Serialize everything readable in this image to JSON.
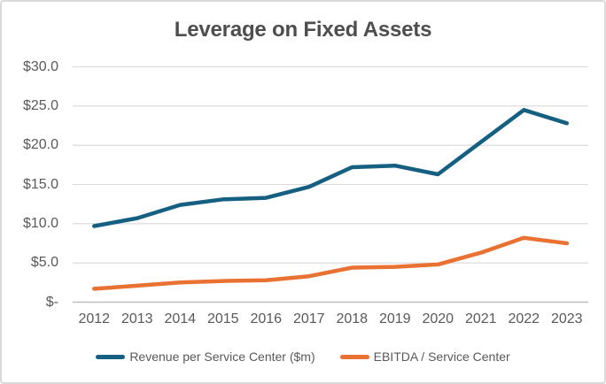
{
  "title": "Leverage on Fixed Assets",
  "colors": {
    "grid": "#d9d9d9",
    "axis_line": "#bfbfbf",
    "text": "#595959",
    "title_text": "#4e4e4e",
    "frame_border": "#d9d9d9",
    "series_revenue": "#156082",
    "series_ebitda": "#e97132"
  },
  "chart_data": {
    "type": "line",
    "title": "Leverage on Fixed Assets",
    "categories": [
      "2012",
      "2013",
      "2014",
      "2015",
      "2016",
      "2017",
      "2018",
      "2019",
      "2020",
      "2021",
      "2022",
      "2023"
    ],
    "series": [
      {
        "name": "Revenue per Service Center ($m)",
        "color": "#156082",
        "values": [
          9.7,
          10.7,
          12.4,
          13.1,
          13.3,
          14.7,
          17.2,
          17.4,
          16.3,
          20.4,
          24.5,
          22.8
        ]
      },
      {
        "name": "EBITDA / Service Center",
        "color": "#e97132",
        "values": [
          1.7,
          2.1,
          2.5,
          2.7,
          2.8,
          3.3,
          4.4,
          4.5,
          4.8,
          6.3,
          8.2,
          7.5
        ]
      }
    ],
    "y_ticks": [
      {
        "label": "$30.0",
        "value": 30
      },
      {
        "label": "$25.0",
        "value": 25
      },
      {
        "label": "$20.0",
        "value": 20
      },
      {
        "label": "$15.0",
        "value": 15
      },
      {
        "label": "$10.0",
        "value": 10
      },
      {
        "label": "$5.0",
        "value": 5
      },
      {
        "label": "$-",
        "value": 0
      }
    ],
    "ylim": [
      0,
      30
    ],
    "xlabel": "",
    "ylabel": "",
    "grid": true,
    "legend_position": "bottom"
  }
}
